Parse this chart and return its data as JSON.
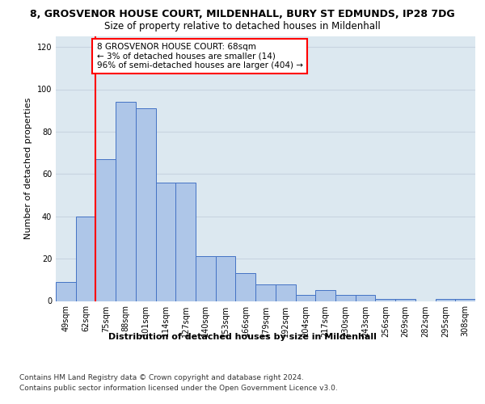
{
  "title_line1": "8, GROSVENOR HOUSE COURT, MILDENHALL, BURY ST EDMUNDS, IP28 7DG",
  "title_line2": "Size of property relative to detached houses in Mildenhall",
  "xlabel": "Distribution of detached houses by size in Mildenhall",
  "ylabel": "Number of detached properties",
  "categories": [
    "49sqm",
    "62sqm",
    "75sqm",
    "88sqm",
    "101sqm",
    "114sqm",
    "127sqm",
    "140sqm",
    "153sqm",
    "166sqm",
    "179sqm",
    "192sqm",
    "204sqm",
    "217sqm",
    "230sqm",
    "243sqm",
    "256sqm",
    "269sqm",
    "282sqm",
    "295sqm",
    "308sqm"
  ],
  "values": [
    9,
    40,
    67,
    94,
    91,
    56,
    56,
    21,
    21,
    13,
    8,
    8,
    3,
    5,
    3,
    3,
    1,
    1,
    0,
    1,
    1
  ],
  "bar_color": "#aec6e8",
  "bar_edge_color": "#4472c4",
  "annotation_line1": "8 GROSVENOR HOUSE COURT: 68sqm",
  "annotation_line2": "← 3% of detached houses are smaller (14)",
  "annotation_line3": "96% of semi-detached houses are larger (404) →",
  "annotation_box_color": "white",
  "annotation_box_edge_color": "red",
  "red_line_color": "red",
  "ylim": [
    0,
    125
  ],
  "yticks": [
    0,
    20,
    40,
    60,
    80,
    100,
    120
  ],
  "grid_color": "#c8d4e0",
  "bg_color": "#dce8f0",
  "footer_line1": "Contains HM Land Registry data © Crown copyright and database right 2024.",
  "footer_line2": "Contains public sector information licensed under the Open Government Licence v3.0.",
  "title_fontsize": 9,
  "subtitle_fontsize": 8.5,
  "axis_label_fontsize": 8,
  "tick_fontsize": 7,
  "annotation_fontsize": 7.5,
  "footer_fontsize": 6.5
}
